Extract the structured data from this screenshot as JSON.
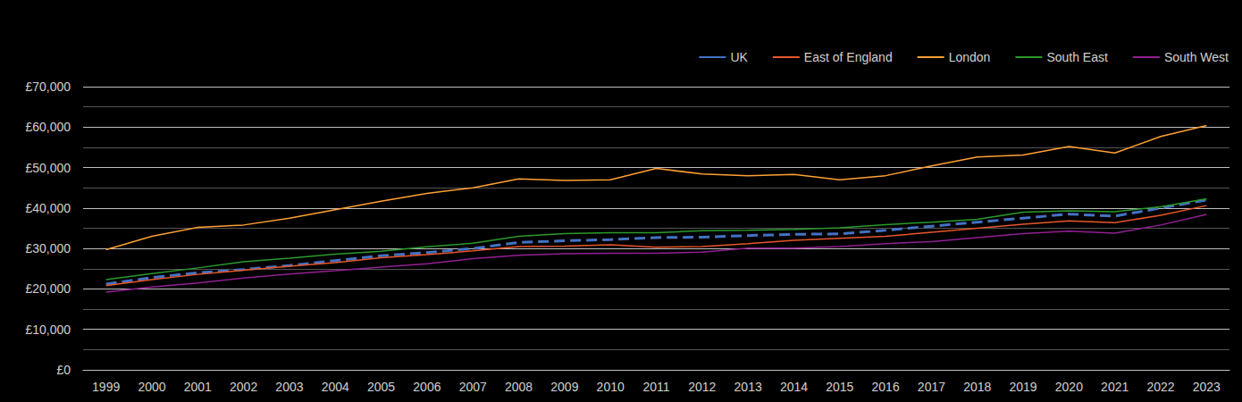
{
  "chart_data": {
    "type": "line",
    "categories": [
      "1999",
      "2000",
      "2001",
      "2002",
      "2003",
      "2004",
      "2005",
      "2006",
      "2007",
      "2008",
      "2009",
      "2010",
      "2011",
      "2012",
      "2013",
      "2014",
      "2015",
      "2016",
      "2017",
      "2018",
      "2019",
      "2020",
      "2021",
      "2022",
      "2023"
    ],
    "series": [
      {
        "name": "UK",
        "color": "#4472c4",
        "line_style": "dashed",
        "values": [
          21200,
          22800,
          24000,
          24800,
          25800,
          27000,
          28200,
          29000,
          30000,
          31500,
          31900,
          32200,
          32700,
          32800,
          33200,
          33500,
          33600,
          34500,
          35500,
          36500,
          37500,
          38500,
          38000,
          40000,
          42000
        ]
      },
      {
        "name": "East of England",
        "color": "#e8562a",
        "line_style": "solid",
        "values": [
          20800,
          22300,
          23600,
          24600,
          25600,
          26500,
          27700,
          28500,
          29400,
          30500,
          30600,
          30900,
          30300,
          30500,
          31200,
          32000,
          32500,
          33000,
          34000,
          35000,
          36000,
          36800,
          36400,
          38200,
          40600
        ]
      },
      {
        "name": "London",
        "color": "#ffa033",
        "line_style": "solid",
        "values": [
          29700,
          33000,
          35200,
          35800,
          37500,
          39600,
          41700,
          43600,
          45000,
          47200,
          46800,
          47000,
          49800,
          48400,
          48000,
          48300,
          47000,
          48000,
          50400,
          52600,
          53100,
          55200,
          53600,
          57700,
          60400
        ]
      },
      {
        "name": "South East",
        "color": "#2a9a2a",
        "line_style": "solid",
        "values": [
          22300,
          23800,
          25200,
          26700,
          27600,
          28600,
          29300,
          30400,
          31300,
          33000,
          33700,
          33900,
          33900,
          34400,
          34500,
          34700,
          35100,
          35900,
          36500,
          37200,
          39000,
          39300,
          39100,
          40300,
          42300
        ]
      },
      {
        "name": "South West",
        "color": "#931f93",
        "line_style": "solid",
        "values": [
          19200,
          20500,
          21500,
          22700,
          23700,
          24500,
          25400,
          26200,
          27500,
          28300,
          28700,
          28800,
          28800,
          29100,
          30100,
          30100,
          30500,
          31200,
          31700,
          32700,
          33700,
          34300,
          33800,
          35800,
          38400
        ]
      }
    ],
    "ylim": [
      0,
      70000
    ],
    "yticks": [
      {
        "value": 0,
        "label": "£0"
      },
      {
        "value": 10000,
        "label": "£10,000"
      },
      {
        "value": 20000,
        "label": "£20,000"
      },
      {
        "value": 30000,
        "label": "£30,000"
      },
      {
        "value": 40000,
        "label": "£40,000"
      },
      {
        "value": 50000,
        "label": "£50,000"
      },
      {
        "value": 60000,
        "label": "£60,000"
      },
      {
        "value": 70000,
        "label": "£70,000"
      }
    ],
    "grid": true,
    "legend": "top-right"
  }
}
